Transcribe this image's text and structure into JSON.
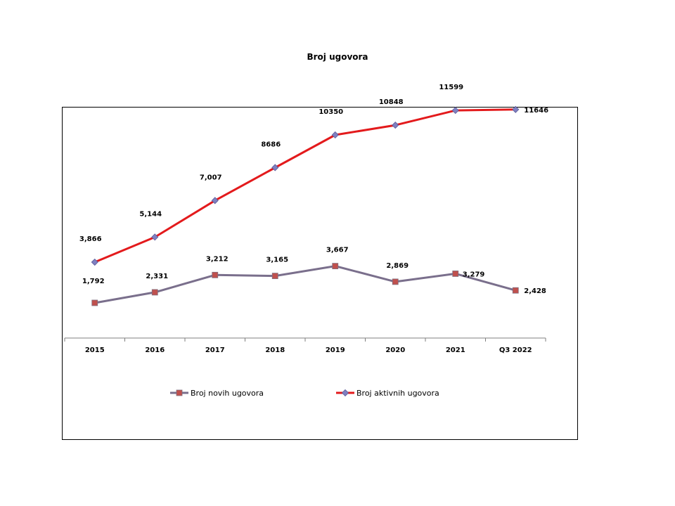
{
  "chart_data": {
    "type": "line",
    "title": "Broj ugovora",
    "xlabel": "",
    "ylabel": "",
    "categories": [
      "2015",
      "2016",
      "2017",
      "2018",
      "2019",
      "2020",
      "2021",
      "Q3 2022"
    ],
    "ylim": [
      0,
      13000
    ],
    "grid": false,
    "legend_position": "bottom",
    "series": [
      {
        "name": "Broj novih ugovora",
        "values": [
          1792,
          2331,
          3212,
          3165,
          3667,
          2869,
          3279,
          2428
        ],
        "labels": [
          "1,792",
          "2,331",
          "3,212",
          "3,165",
          "3,667",
          "2,869",
          "3,279",
          "2,428"
        ],
        "color": "#7a6f8c",
        "marker": "square",
        "marker_color": "#c0504d"
      },
      {
        "name": "Broj aktivnih ugovora",
        "values": [
          3866,
          5144,
          7007,
          8686,
          10350,
          10848,
          11599,
          11646
        ],
        "labels": [
          "3,866",
          "5,144",
          "7,007",
          "8686",
          "10350",
          "10848",
          "11599",
          "11646"
        ],
        "color": "#e31a1c",
        "marker": "diamond",
        "marker_color": "#8080c0"
      }
    ]
  }
}
